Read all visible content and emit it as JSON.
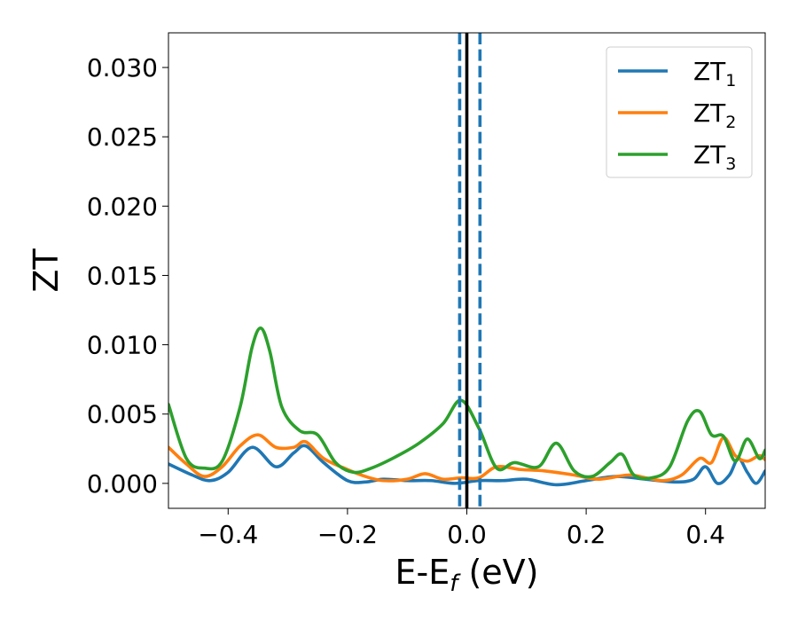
{
  "chart_data": {
    "type": "line",
    "title": "",
    "xlabel": {
      "main": "E-E",
      "sub": "f",
      "unit": " (eV)"
    },
    "ylabel": "ZT",
    "xlim": [
      -0.5,
      0.5
    ],
    "ylim": [
      -0.0018,
      0.0325
    ],
    "xticks": [
      -0.4,
      -0.2,
      0.0,
      0.2,
      0.4
    ],
    "xtick_labels": [
      "−0.4",
      "−0.2",
      "0.0",
      "0.2",
      "0.4"
    ],
    "yticks": [
      0.0,
      0.005,
      0.01,
      0.015,
      0.02,
      0.025,
      0.03
    ],
    "ytick_labels": [
      "0.000",
      "0.005",
      "0.010",
      "0.015",
      "0.020",
      "0.025",
      "0.030"
    ],
    "grid": false,
    "legend": "top-right",
    "vlines": [
      {
        "x": -0.012,
        "style": "dashed",
        "color": "#1f77b4"
      },
      {
        "x": 0.0,
        "style": "solid",
        "color": "#000000"
      },
      {
        "x": 0.022,
        "style": "dashed",
        "color": "#1f77b4"
      }
    ],
    "series": [
      {
        "name": "ZT",
        "sub": "1",
        "color": "#1f77b4",
        "x": [
          -0.5,
          -0.46,
          -0.43,
          -0.4,
          -0.36,
          -0.32,
          -0.29,
          -0.27,
          -0.24,
          -0.2,
          -0.17,
          -0.14,
          -0.1,
          -0.06,
          -0.02,
          0.02,
          0.06,
          0.1,
          0.15,
          0.2,
          0.25,
          0.3,
          0.35,
          0.38,
          0.4,
          0.42,
          0.44,
          0.455,
          0.47,
          0.485,
          0.5
        ],
        "y": [
          0.0014,
          0.0006,
          0.0002,
          0.0008,
          0.0026,
          0.0012,
          0.0022,
          0.0027,
          0.0015,
          0.0002,
          0.0001,
          0.0003,
          0.0002,
          0.0002,
          0.0,
          0.0002,
          0.0002,
          0.0003,
          -0.0001,
          0.0002,
          0.0005,
          0.0003,
          0.0001,
          0.0003,
          0.0012,
          0.0,
          0.0006,
          0.0018,
          0.0008,
          0.0,
          0.0009
        ]
      },
      {
        "name": "ZT",
        "sub": "2",
        "color": "#ff7f0e",
        "x": [
          -0.5,
          -0.47,
          -0.44,
          -0.41,
          -0.38,
          -0.35,
          -0.32,
          -0.29,
          -0.27,
          -0.24,
          -0.2,
          -0.17,
          -0.14,
          -0.1,
          -0.07,
          -0.04,
          -0.01,
          0.02,
          0.05,
          0.09,
          0.13,
          0.18,
          0.22,
          0.27,
          0.3,
          0.33,
          0.36,
          0.39,
          0.41,
          0.43,
          0.45,
          0.47,
          0.49,
          0.5
        ],
        "y": [
          0.0026,
          0.0014,
          0.0005,
          0.0012,
          0.0027,
          0.0035,
          0.0026,
          0.0026,
          0.003,
          0.0018,
          0.001,
          0.0005,
          0.0002,
          0.0003,
          0.0007,
          0.0003,
          0.0004,
          0.0004,
          0.0012,
          0.001,
          0.0009,
          0.0006,
          0.0003,
          0.0006,
          0.0004,
          0.0002,
          0.0006,
          0.0018,
          0.0015,
          0.0033,
          0.002,
          0.0016,
          0.002,
          0.0017
        ]
      },
      {
        "name": "ZT",
        "sub": "3",
        "color": "#2ca02c",
        "x": [
          -0.5,
          -0.47,
          -0.44,
          -0.41,
          -0.38,
          -0.36,
          -0.345,
          -0.33,
          -0.31,
          -0.28,
          -0.25,
          -0.22,
          -0.19,
          -0.16,
          -0.12,
          -0.08,
          -0.04,
          -0.01,
          0.02,
          0.05,
          0.08,
          0.12,
          0.15,
          0.18,
          0.21,
          0.24,
          0.26,
          0.28,
          0.31,
          0.34,
          0.37,
          0.39,
          0.41,
          0.43,
          0.45,
          0.47,
          0.49,
          0.5
        ],
        "y": [
          0.0057,
          0.0018,
          0.0011,
          0.0016,
          0.0055,
          0.0098,
          0.0112,
          0.0095,
          0.0055,
          0.0038,
          0.0035,
          0.0015,
          0.0008,
          0.0011,
          0.0019,
          0.0029,
          0.0043,
          0.006,
          0.004,
          0.0011,
          0.0015,
          0.0012,
          0.0029,
          0.0009,
          0.0005,
          0.0015,
          0.0021,
          0.0006,
          0.0004,
          0.0012,
          0.0045,
          0.0052,
          0.0035,
          0.0034,
          0.0016,
          0.0032,
          0.0018,
          0.0024
        ]
      }
    ]
  }
}
